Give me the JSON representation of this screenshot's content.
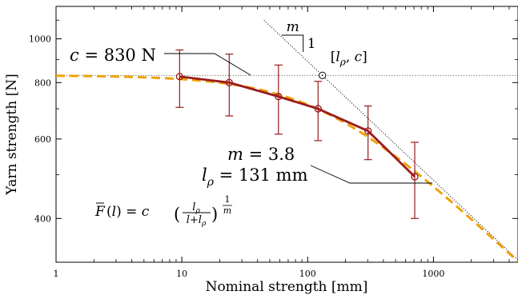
{
  "chart_data": {
    "type": "line",
    "xlabel": "Nominal strength [mm]",
    "ylabel": "Yarn strength [N]",
    "xscale": "log",
    "yscale": "log",
    "xlim": [
      1,
      4700
    ],
    "ylim": [
      320,
      1180
    ],
    "x_ticks": [
      1,
      10,
      100,
      1000
    ],
    "x_tick_labels": [
      "1",
      "10",
      "100",
      "1000"
    ],
    "y_ticks": [
      400,
      600,
      800,
      1000
    ],
    "y_tick_labels": [
      "400",
      "600",
      "800",
      "1000"
    ],
    "grid": false,
    "colors": {
      "measured": "#9a1b1b",
      "fit": "#f0a20a",
      "reference": "#000000"
    },
    "series": [
      {
        "style": "solid line with circle markers and error bars",
        "x": [
          9.6,
          23.8,
          58.6,
          121,
          302,
          710
        ],
        "y": [
          825,
          800,
          745,
          700,
          625,
          495
        ],
        "err": [
          120,
          125,
          130,
          105,
          85,
          95
        ]
      },
      {
        "style": "dashed fit curve",
        "c": 830,
        "m": 3.8,
        "l_rho": 131
      }
    ],
    "annotations": {
      "c_label": "c = 830 N",
      "c_value": "830",
      "m_value": "3.8",
      "lrho_value": "131",
      "lrho_unit": "mm",
      "point_label": "[l_ρ, c]",
      "slope_symbol": "m",
      "slope_one": "1",
      "formula": "F̄(l) = c(l_ρ/(l+l_ρ))^(1/m)"
    }
  }
}
